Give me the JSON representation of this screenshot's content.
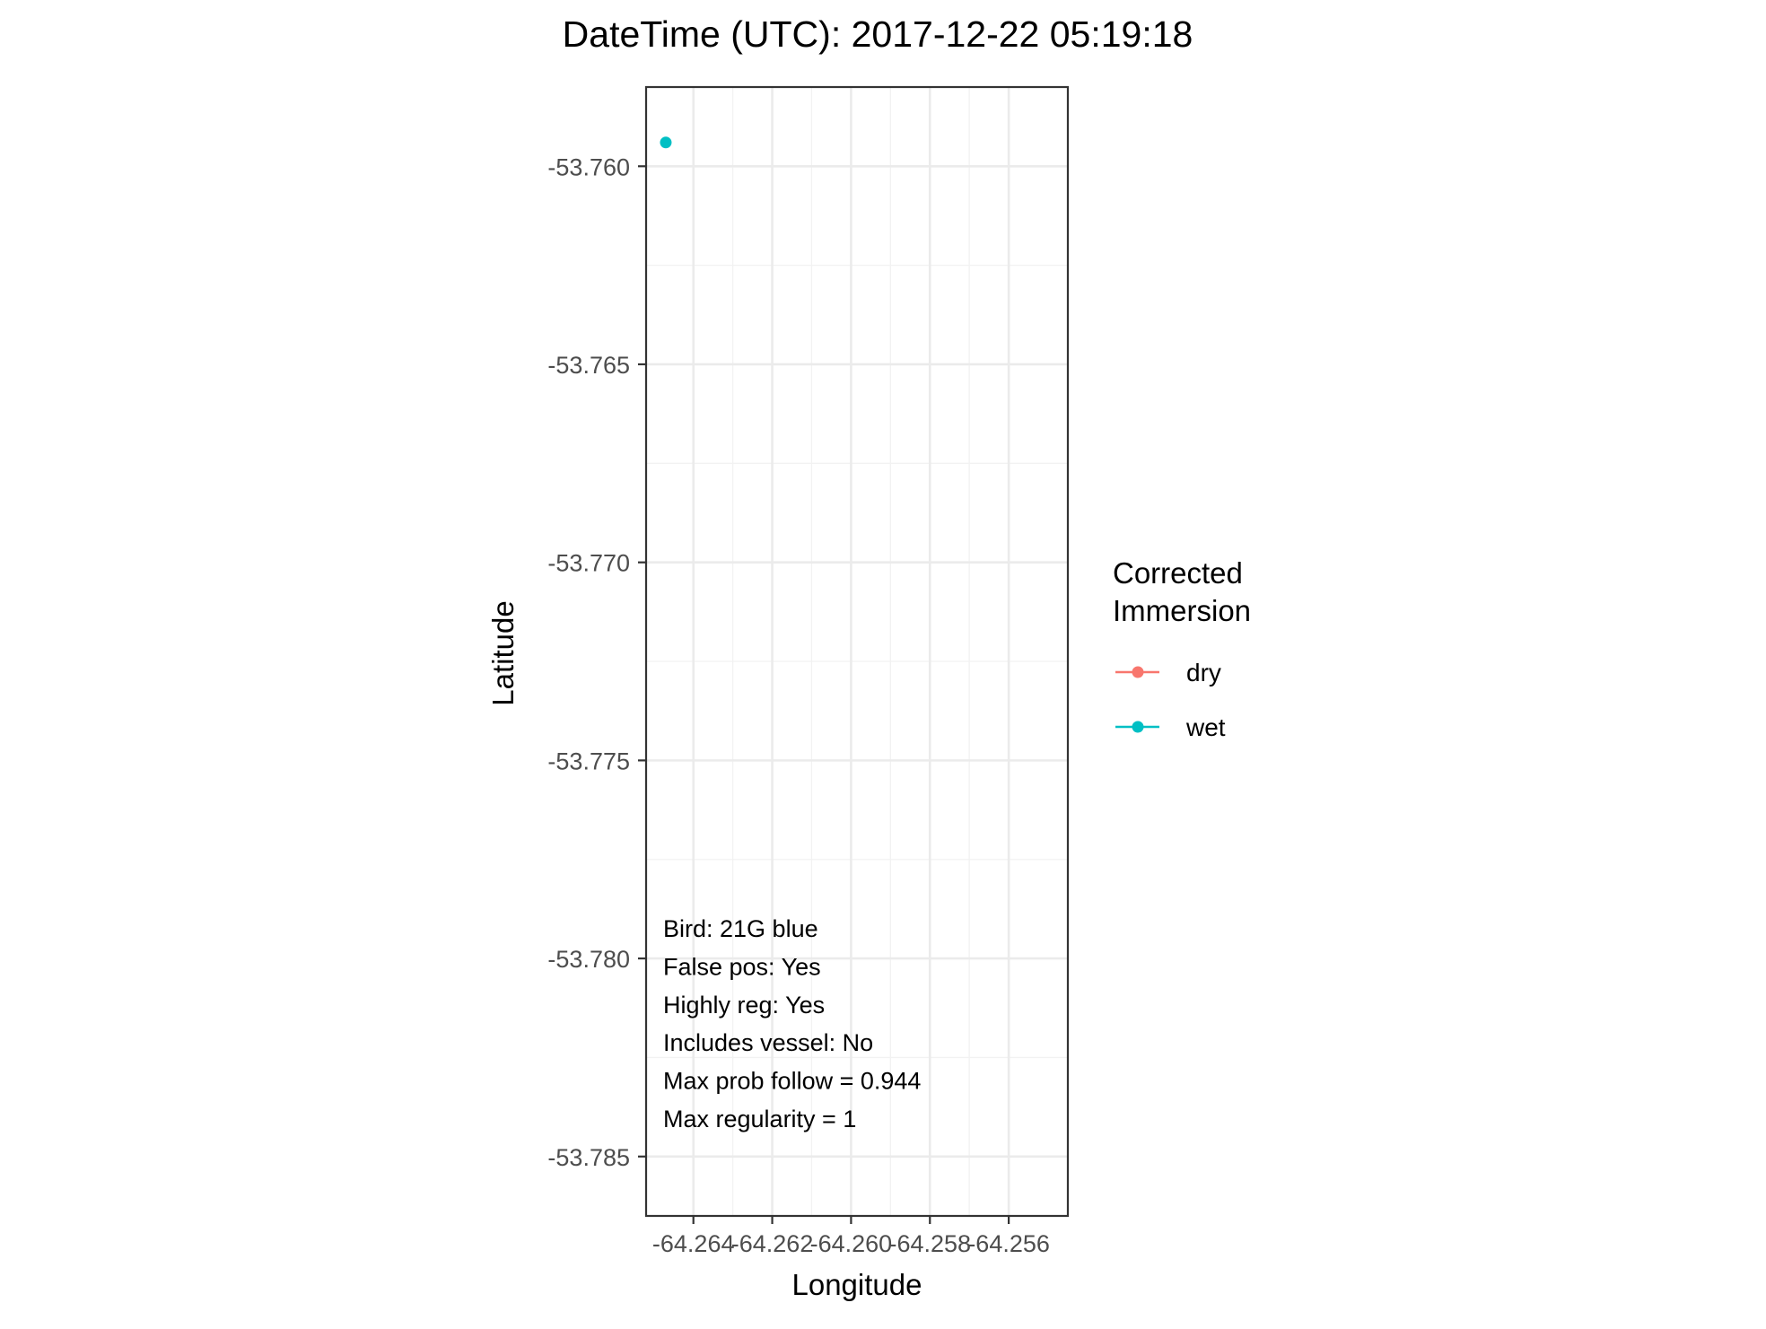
{
  "chart_data": {
    "type": "scatter",
    "title": "DateTime (UTC): 2017-12-22 05:19:18",
    "xlabel": "Longitude",
    "ylabel": "Latitude",
    "xlim": [
      -64.2652,
      -64.2545
    ],
    "ylim": [
      -53.7865,
      -53.758
    ],
    "x_ticks": [
      -64.264,
      -64.262,
      -64.26,
      -64.258,
      -64.256
    ],
    "x_tick_labels": [
      "-64.264",
      "-64.262",
      "-64.260",
      "-64.258",
      "-64.256"
    ],
    "y_ticks": [
      -53.76,
      -53.765,
      -53.77,
      -53.775,
      -53.78,
      -53.785
    ],
    "y_tick_labels": [
      "-53.760",
      "-53.765",
      "-53.770",
      "-53.775",
      "-53.780",
      "-53.785"
    ],
    "grid": true,
    "series": [
      {
        "name": "dry",
        "color": "#F8766D",
        "points": []
      },
      {
        "name": "wet",
        "color": "#00BFC4",
        "points": [
          {
            "x": -64.2647,
            "y": -53.7594
          }
        ]
      }
    ],
    "legend": {
      "title_lines": [
        "Corrected",
        "Immersion"
      ],
      "entries": [
        {
          "label": "dry",
          "color": "#F8766D"
        },
        {
          "label": "wet",
          "color": "#00BFC4"
        }
      ],
      "position": "right"
    },
    "annotations": [
      "Bird: 21G blue",
      "False pos: Yes",
      "Highly reg: Yes",
      "Includes vessel: No",
      "Max prob follow = 0.944",
      "Max regularity = 1"
    ]
  }
}
